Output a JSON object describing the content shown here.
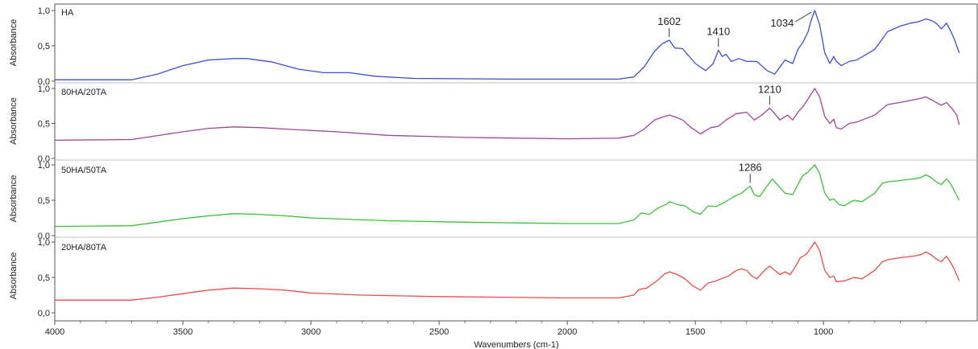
{
  "chart_data": {
    "type": "line",
    "xlabel": "Wavenumbers (cm-1)",
    "ylabel": "Absorbance",
    "xlim": [
      4000,
      400
    ],
    "x_reversed": true,
    "x_ticks": [
      4000,
      3500,
      3000,
      2500,
      2000,
      1500,
      1000
    ],
    "x_tick_labels": [
      "4000",
      "3500",
      "3000",
      "2500",
      "2000",
      "1500",
      "1000"
    ],
    "ylim": [
      0,
      1.0
    ],
    "y_ticks": [
      0,
      0.5,
      1.0
    ],
    "y_tick_labels": [
      "0,0",
      "0,5",
      "1,0"
    ],
    "grid": false,
    "legend": "none",
    "panels": [
      {
        "name": "HA",
        "color": "#3b4fd6",
        "points": [
          [
            4000,
            0.02
          ],
          [
            3700,
            0.02
          ],
          [
            3600,
            0.1
          ],
          [
            3500,
            0.22
          ],
          [
            3400,
            0.3
          ],
          [
            3300,
            0.32
          ],
          [
            3250,
            0.32
          ],
          [
            3150,
            0.27
          ],
          [
            3050,
            0.17
          ],
          [
            2950,
            0.12
          ],
          [
            2850,
            0.12
          ],
          [
            2750,
            0.07
          ],
          [
            2600,
            0.04
          ],
          [
            2200,
            0.03
          ],
          [
            1800,
            0.03
          ],
          [
            1740,
            0.06
          ],
          [
            1700,
            0.2
          ],
          [
            1660,
            0.42
          ],
          [
            1630,
            0.53
          ],
          [
            1602,
            0.58
          ],
          [
            1580,
            0.47
          ],
          [
            1550,
            0.46
          ],
          [
            1500,
            0.25
          ],
          [
            1460,
            0.15
          ],
          [
            1430,
            0.25
          ],
          [
            1410,
            0.44
          ],
          [
            1395,
            0.35
          ],
          [
            1380,
            0.38
          ],
          [
            1360,
            0.28
          ],
          [
            1330,
            0.32
          ],
          [
            1300,
            0.28
          ],
          [
            1260,
            0.28
          ],
          [
            1220,
            0.15
          ],
          [
            1190,
            0.1
          ],
          [
            1170,
            0.2
          ],
          [
            1150,
            0.3
          ],
          [
            1120,
            0.25
          ],
          [
            1100,
            0.45
          ],
          [
            1080,
            0.55
          ],
          [
            1060,
            0.7
          ],
          [
            1050,
            0.84
          ],
          [
            1034,
            1.0
          ],
          [
            1015,
            0.8
          ],
          [
            995,
            0.4
          ],
          [
            975,
            0.25
          ],
          [
            960,
            0.35
          ],
          [
            950,
            0.28
          ],
          [
            930,
            0.22
          ],
          [
            900,
            0.28
          ],
          [
            870,
            0.3
          ],
          [
            800,
            0.45
          ],
          [
            750,
            0.7
          ],
          [
            700,
            0.78
          ],
          [
            660,
            0.82
          ],
          [
            630,
            0.84
          ],
          [
            600,
            0.88
          ],
          [
            580,
            0.86
          ],
          [
            560,
            0.82
          ],
          [
            540,
            0.74
          ],
          [
            520,
            0.82
          ],
          [
            505,
            0.72
          ],
          [
            490,
            0.6
          ],
          [
            470,
            0.4
          ]
        ]
      },
      {
        "name": "80HA/20TA",
        "color": "#a0439c",
        "points": [
          [
            4000,
            0.26
          ],
          [
            3700,
            0.27
          ],
          [
            3500,
            0.38
          ],
          [
            3400,
            0.43
          ],
          [
            3300,
            0.45
          ],
          [
            3200,
            0.44
          ],
          [
            3100,
            0.42
          ],
          [
            2900,
            0.38
          ],
          [
            2700,
            0.33
          ],
          [
            2400,
            0.3
          ],
          [
            2000,
            0.28
          ],
          [
            1800,
            0.29
          ],
          [
            1740,
            0.33
          ],
          [
            1700,
            0.42
          ],
          [
            1660,
            0.55
          ],
          [
            1620,
            0.6
          ],
          [
            1600,
            0.62
          ],
          [
            1570,
            0.58
          ],
          [
            1550,
            0.55
          ],
          [
            1520,
            0.45
          ],
          [
            1480,
            0.35
          ],
          [
            1440,
            0.44
          ],
          [
            1410,
            0.46
          ],
          [
            1380,
            0.55
          ],
          [
            1340,
            0.64
          ],
          [
            1300,
            0.66
          ],
          [
            1270,
            0.55
          ],
          [
            1240,
            0.62
          ],
          [
            1210,
            0.72
          ],
          [
            1190,
            0.64
          ],
          [
            1170,
            0.55
          ],
          [
            1140,
            0.62
          ],
          [
            1120,
            0.55
          ],
          [
            1100,
            0.66
          ],
          [
            1080,
            0.74
          ],
          [
            1060,
            0.85
          ],
          [
            1034,
            1.0
          ],
          [
            1015,
            0.88
          ],
          [
            995,
            0.6
          ],
          [
            975,
            0.5
          ],
          [
            960,
            0.56
          ],
          [
            950,
            0.44
          ],
          [
            930,
            0.42
          ],
          [
            900,
            0.5
          ],
          [
            870,
            0.52
          ],
          [
            800,
            0.62
          ],
          [
            750,
            0.77
          ],
          [
            700,
            0.8
          ],
          [
            660,
            0.83
          ],
          [
            620,
            0.86
          ],
          [
            600,
            0.88
          ],
          [
            580,
            0.84
          ],
          [
            560,
            0.8
          ],
          [
            540,
            0.76
          ],
          [
            520,
            0.8
          ],
          [
            500,
            0.72
          ],
          [
            480,
            0.62
          ],
          [
            470,
            0.48
          ]
        ]
      },
      {
        "name": "50HA/50TA",
        "color": "#38c234",
        "points": [
          [
            4000,
            0.13
          ],
          [
            3700,
            0.14
          ],
          [
            3600,
            0.19
          ],
          [
            3500,
            0.24
          ],
          [
            3400,
            0.28
          ],
          [
            3300,
            0.31
          ],
          [
            3200,
            0.3
          ],
          [
            3100,
            0.28
          ],
          [
            3000,
            0.25
          ],
          [
            2700,
            0.21
          ],
          [
            2400,
            0.19
          ],
          [
            2000,
            0.17
          ],
          [
            1800,
            0.17
          ],
          [
            1740,
            0.22
          ],
          [
            1710,
            0.32
          ],
          [
            1680,
            0.3
          ],
          [
            1650,
            0.38
          ],
          [
            1610,
            0.45
          ],
          [
            1600,
            0.48
          ],
          [
            1570,
            0.44
          ],
          [
            1540,
            0.42
          ],
          [
            1510,
            0.34
          ],
          [
            1480,
            0.3
          ],
          [
            1450,
            0.42
          ],
          [
            1420,
            0.41
          ],
          [
            1390,
            0.46
          ],
          [
            1350,
            0.55
          ],
          [
            1320,
            0.6
          ],
          [
            1300,
            0.66
          ],
          [
            1286,
            0.7
          ],
          [
            1270,
            0.58
          ],
          [
            1250,
            0.55
          ],
          [
            1220,
            0.7
          ],
          [
            1200,
            0.8
          ],
          [
            1180,
            0.72
          ],
          [
            1150,
            0.6
          ],
          [
            1120,
            0.58
          ],
          [
            1100,
            0.72
          ],
          [
            1080,
            0.85
          ],
          [
            1060,
            0.9
          ],
          [
            1034,
            1.0
          ],
          [
            1015,
            0.88
          ],
          [
            995,
            0.6
          ],
          [
            975,
            0.5
          ],
          [
            960,
            0.52
          ],
          [
            940,
            0.44
          ],
          [
            920,
            0.42
          ],
          [
            880,
            0.5
          ],
          [
            850,
            0.48
          ],
          [
            800,
            0.6
          ],
          [
            770,
            0.74
          ],
          [
            750,
            0.76
          ],
          [
            700,
            0.78
          ],
          [
            650,
            0.8
          ],
          [
            620,
            0.82
          ],
          [
            600,
            0.86
          ],
          [
            580,
            0.82
          ],
          [
            560,
            0.76
          ],
          [
            540,
            0.72
          ],
          [
            520,
            0.8
          ],
          [
            505,
            0.74
          ],
          [
            490,
            0.64
          ],
          [
            470,
            0.5
          ]
        ]
      },
      {
        "name": "20HA/80TA",
        "color": "#ea4d45",
        "points": [
          [
            4000,
            0.18
          ],
          [
            3700,
            0.18
          ],
          [
            3600,
            0.22
          ],
          [
            3500,
            0.27
          ],
          [
            3400,
            0.32
          ],
          [
            3300,
            0.35
          ],
          [
            3200,
            0.34
          ],
          [
            3100,
            0.32
          ],
          [
            3000,
            0.28
          ],
          [
            2800,
            0.25
          ],
          [
            2500,
            0.23
          ],
          [
            2000,
            0.21
          ],
          [
            1800,
            0.21
          ],
          [
            1740,
            0.25
          ],
          [
            1720,
            0.33
          ],
          [
            1690,
            0.35
          ],
          [
            1650,
            0.45
          ],
          [
            1620,
            0.55
          ],
          [
            1600,
            0.58
          ],
          [
            1570,
            0.54
          ],
          [
            1540,
            0.48
          ],
          [
            1510,
            0.38
          ],
          [
            1480,
            0.32
          ],
          [
            1450,
            0.42
          ],
          [
            1420,
            0.45
          ],
          [
            1400,
            0.48
          ],
          [
            1370,
            0.52
          ],
          [
            1340,
            0.6
          ],
          [
            1320,
            0.62
          ],
          [
            1300,
            0.6
          ],
          [
            1280,
            0.52
          ],
          [
            1260,
            0.48
          ],
          [
            1230,
            0.6
          ],
          [
            1210,
            0.66
          ],
          [
            1190,
            0.6
          ],
          [
            1170,
            0.54
          ],
          [
            1150,
            0.58
          ],
          [
            1130,
            0.54
          ],
          [
            1110,
            0.65
          ],
          [
            1090,
            0.78
          ],
          [
            1070,
            0.82
          ],
          [
            1060,
            0.86
          ],
          [
            1034,
            1.0
          ],
          [
            1015,
            0.88
          ],
          [
            995,
            0.6
          ],
          [
            975,
            0.5
          ],
          [
            960,
            0.52
          ],
          [
            950,
            0.44
          ],
          [
            920,
            0.45
          ],
          [
            880,
            0.5
          ],
          [
            850,
            0.48
          ],
          [
            800,
            0.6
          ],
          [
            770,
            0.72
          ],
          [
            750,
            0.75
          ],
          [
            700,
            0.78
          ],
          [
            650,
            0.8
          ],
          [
            620,
            0.82
          ],
          [
            600,
            0.86
          ],
          [
            580,
            0.82
          ],
          [
            560,
            0.76
          ],
          [
            540,
            0.72
          ],
          [
            520,
            0.8
          ],
          [
            505,
            0.72
          ],
          [
            490,
            0.62
          ],
          [
            470,
            0.45
          ]
        ]
      }
    ],
    "annotations": [
      {
        "panel": 0,
        "text": "1602",
        "x": 1602,
        "y": 0.58,
        "leader": "vertical"
      },
      {
        "panel": 0,
        "text": "1410",
        "x": 1410,
        "y": 0.44,
        "leader": "vertical"
      },
      {
        "panel": 0,
        "text": "1034",
        "x": 1034,
        "y": 1.0,
        "leader": "diagonal"
      },
      {
        "panel": 1,
        "text": "1210",
        "x": 1210,
        "y": 0.72,
        "leader": "vertical"
      },
      {
        "panel": 2,
        "text": "1286",
        "x": 1286,
        "y": 0.7,
        "leader": "vertical"
      }
    ]
  }
}
